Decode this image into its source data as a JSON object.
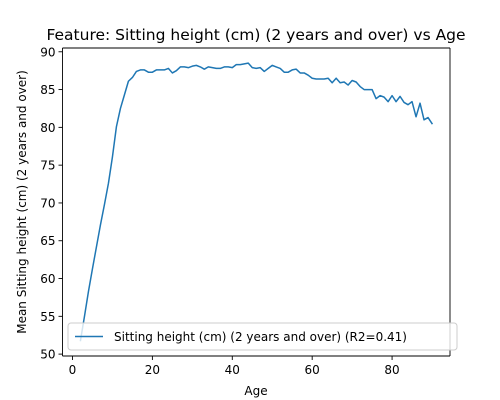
{
  "chart_data": {
    "type": "line",
    "title": "Feature: Sitting height (cm) (2 years and over) vs Age",
    "xlabel": "Age",
    "ylabel": "Mean Sitting height (cm) (2 years and over)",
    "xlim": [
      -2.5,
      94.5
    ],
    "ylim": [
      49.75,
      90.5
    ],
    "xticks": [
      0,
      20,
      40,
      60,
      80
    ],
    "yticks": [
      50,
      55,
      60,
      65,
      70,
      75,
      80,
      85,
      90
    ],
    "grid": false,
    "legend_position": "lower-left",
    "series": [
      {
        "name": "Sitting height (cm) (2 years and over) (R2=0.41)",
        "color": "#1f77b4",
        "x": [
          2,
          3,
          4,
          5,
          6,
          7,
          8,
          9,
          10,
          11,
          12,
          13,
          14,
          15,
          16,
          17,
          18,
          19,
          20,
          21,
          22,
          23,
          24,
          25,
          26,
          27,
          28,
          29,
          30,
          31,
          32,
          33,
          34,
          35,
          36,
          37,
          38,
          39,
          40,
          41,
          42,
          43,
          44,
          45,
          46,
          47,
          48,
          49,
          50,
          51,
          52,
          53,
          54,
          55,
          56,
          57,
          58,
          59,
          60,
          61,
          62,
          63,
          64,
          65,
          66,
          67,
          68,
          69,
          70,
          71,
          72,
          73,
          74,
          75,
          76,
          77,
          78,
          79,
          80,
          81,
          82,
          83,
          84,
          85,
          86,
          87,
          88,
          89,
          90
        ],
        "y": [
          51.8,
          55.0,
          58.3,
          61.3,
          64.2,
          67.1,
          69.8,
          72.6,
          76.1,
          80.1,
          82.5,
          84.3,
          86.1,
          86.6,
          87.4,
          87.6,
          87.6,
          87.3,
          87.3,
          87.6,
          87.6,
          87.6,
          87.8,
          87.2,
          87.5,
          88.0,
          88.0,
          87.9,
          88.1,
          88.2,
          88.0,
          87.7,
          88.0,
          87.9,
          87.8,
          87.8,
          88.0,
          88.0,
          87.9,
          88.3,
          88.3,
          88.4,
          88.5,
          87.9,
          87.8,
          87.9,
          87.4,
          87.8,
          88.2,
          88.0,
          87.8,
          87.3,
          87.3,
          87.6,
          87.7,
          87.2,
          87.2,
          86.9,
          86.5,
          86.4,
          86.4,
          86.4,
          86.5,
          85.9,
          86.5,
          85.9,
          86.0,
          85.6,
          86.2,
          86.0,
          85.4,
          85.0,
          85.0,
          85.0,
          83.8,
          84.2,
          84.0,
          83.4,
          84.2,
          83.4,
          84.1,
          83.3,
          83.0,
          83.4,
          81.4,
          83.2,
          81.0,
          81.3,
          80.5
        ]
      }
    ]
  }
}
